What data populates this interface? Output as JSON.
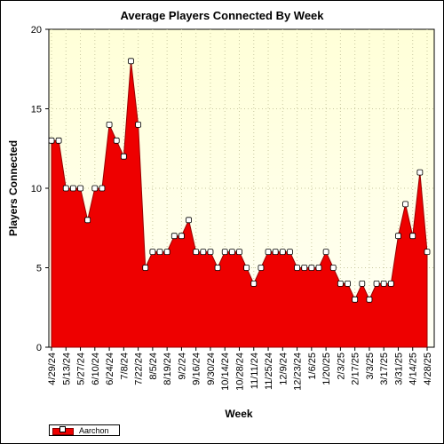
{
  "chart_data": {
    "type": "area",
    "title": "Average Players Connected By Week",
    "xlabel": "Week",
    "ylabel": "Players Connected",
    "ylim": [
      0,
      20
    ],
    "yticks": [
      0,
      5,
      10,
      15,
      20
    ],
    "grid": true,
    "legend_position": "bottom-left",
    "colors": {
      "fill": "#ee0000",
      "line": "#990000",
      "plot_bg_top": "#ffffd8",
      "plot_bg_bottom": "#fffff5",
      "grid": "#c8c8a0"
    },
    "x_tick_labels": [
      "4/29/24",
      "5/13/24",
      "5/27/24",
      "6/10/24",
      "6/24/24",
      "7/8/24",
      "7/22/24",
      "8/5/24",
      "8/19/24",
      "9/2/24",
      "9/16/24",
      "9/30/24",
      "10/14/24",
      "10/28/24",
      "11/11/24",
      "11/25/24",
      "12/9/24",
      "12/23/24",
      "1/6/25",
      "1/20/25",
      "2/3/25",
      "2/17/25",
      "3/3/25",
      "3/17/25",
      "3/31/25",
      "4/14/25",
      "4/28/25"
    ],
    "series": [
      {
        "name": "Aarchon",
        "values": [
          13,
          13,
          10,
          10,
          10,
          8,
          10,
          10,
          14,
          13,
          12,
          18,
          14,
          5,
          6,
          6,
          6,
          7,
          7,
          8,
          6,
          6,
          6,
          5,
          6,
          6,
          6,
          5,
          4,
          5,
          6,
          6,
          6,
          6,
          5,
          5,
          5,
          5,
          6,
          5,
          4,
          4,
          3,
          4,
          3,
          4,
          4,
          4,
          7,
          9,
          7,
          11,
          6
        ]
      }
    ]
  }
}
